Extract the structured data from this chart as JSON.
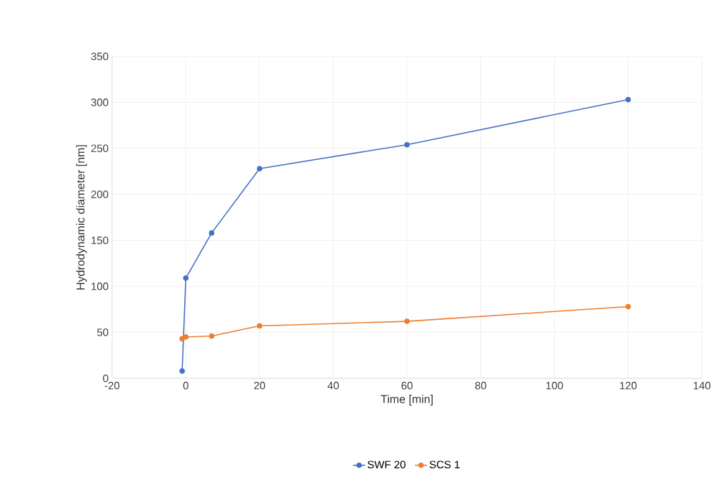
{
  "chart_data": {
    "type": "line",
    "xlabel": "Time [min]",
    "ylabel": "Hydrodynamic diameter [nm]",
    "xlim": [
      -20,
      140
    ],
    "xticks": [
      -20,
      0,
      20,
      40,
      60,
      80,
      100,
      120,
      140
    ],
    "ylim": [
      0,
      350
    ],
    "yticks": [
      0,
      50,
      100,
      150,
      200,
      250,
      300,
      350
    ],
    "grid": true,
    "legend": "bottom",
    "marker": "circle",
    "line_style": "solid",
    "series": [
      {
        "name": "SWF 20",
        "color": "#4472c4",
        "x": [
          -1,
          0,
          7,
          20,
          60,
          120
        ],
        "values": [
          8,
          109,
          158,
          228,
          254,
          303
        ]
      },
      {
        "name": "SCS 1",
        "color": "#ed7d31",
        "x": [
          -1,
          0,
          7,
          20,
          60,
          120
        ],
        "values": [
          43,
          45,
          46,
          57,
          62,
          78
        ]
      }
    ]
  }
}
